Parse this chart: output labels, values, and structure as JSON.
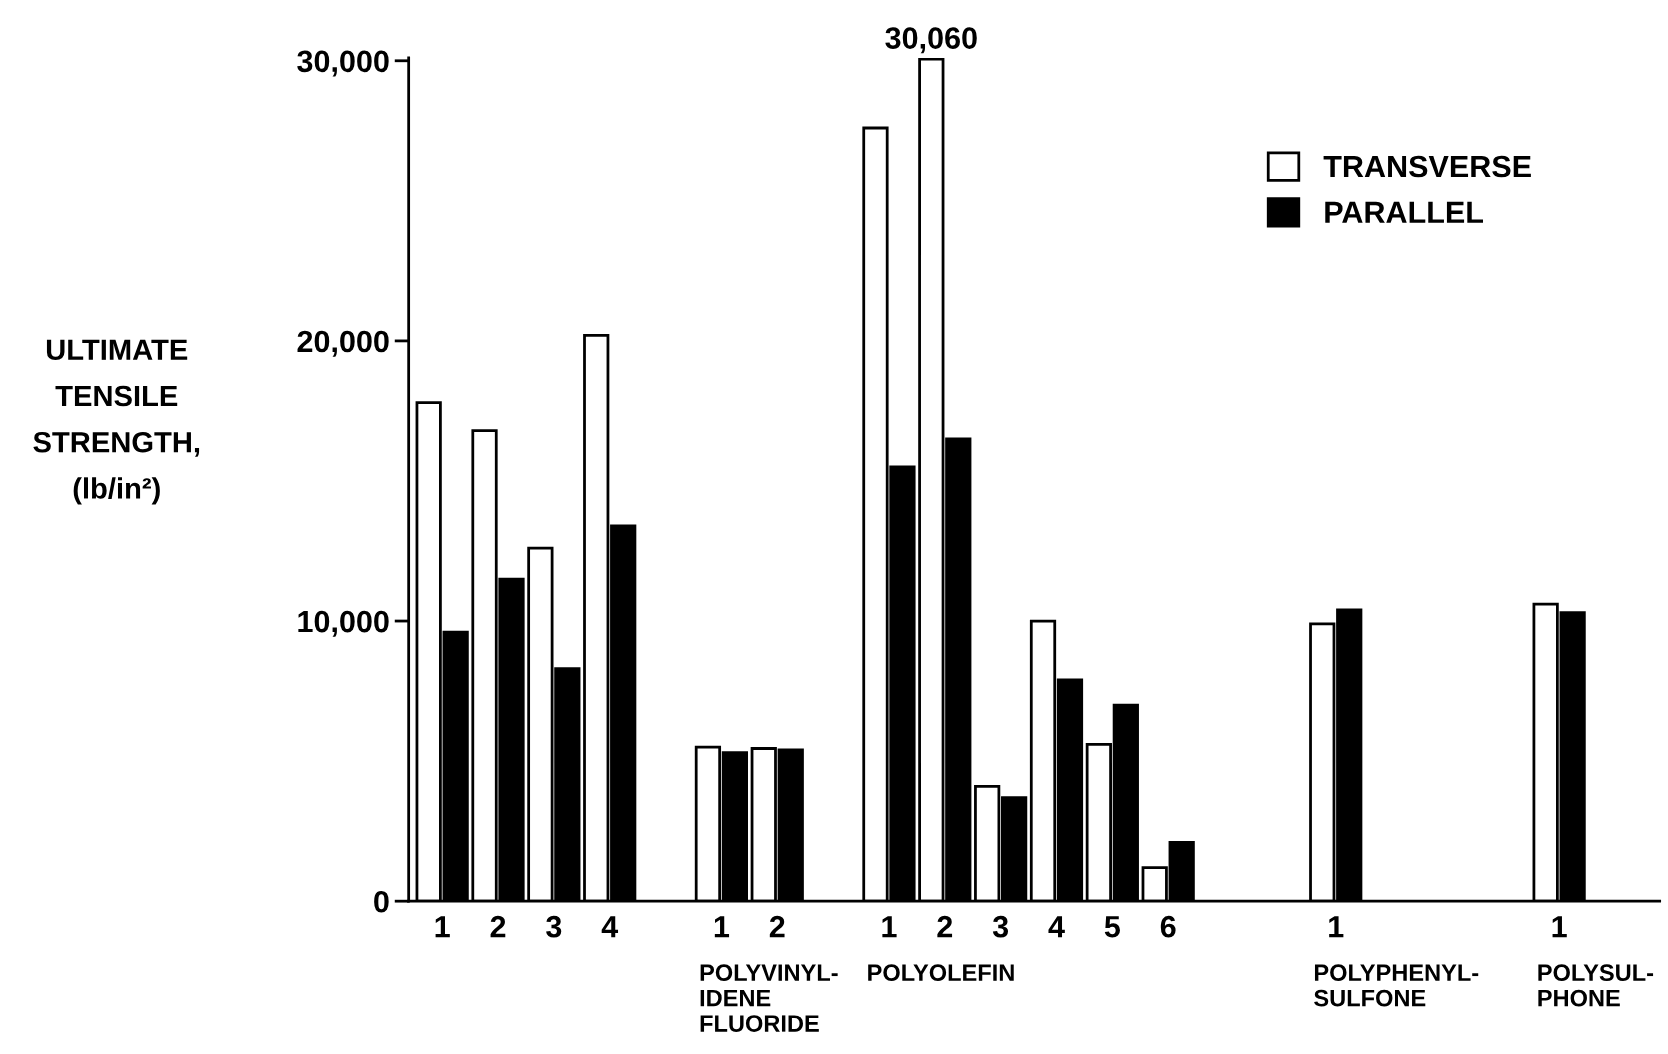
{
  "chart_data": {
    "type": "bar",
    "ylabel": "ULTIMATE\nTENSILE\nSTRENGTH,\n(lb/in²)",
    "categories": [
      "1",
      "2",
      "3",
      "4",
      null,
      "1",
      "2",
      null,
      "1",
      "2",
      "3",
      "4",
      "5",
      "6",
      null,
      null,
      "1",
      null,
      null,
      null,
      "1",
      null
    ],
    "series": [
      {
        "name": "TRANSVERSE",
        "color": "#ffffff",
        "values": [
          17800,
          16800,
          12600,
          20200,
          null,
          5500,
          5450,
          null,
          27600,
          30060,
          4100,
          10000,
          5600,
          1200,
          null,
          null,
          9900,
          null,
          null,
          null,
          10600,
          null
        ],
        "value_labels": [
          null,
          null,
          null,
          null,
          null,
          null,
          null,
          null,
          null,
          "30,060",
          null,
          null,
          null,
          null,
          null,
          null,
          null,
          null,
          null,
          null,
          null,
          null
        ]
      },
      {
        "name": "PARALLEL",
        "color": "#000000",
        "values": [
          9600,
          11500,
          8300,
          13400,
          null,
          5300,
          5400,
          null,
          15500,
          16500,
          3700,
          7900,
          7000,
          2100,
          null,
          null,
          10400,
          null,
          null,
          null,
          10300,
          null
        ]
      }
    ],
    "ylim": [
      0,
      30100
    ],
    "yticks": [
      {
        "value": 0,
        "label": "0"
      },
      {
        "value": 10000,
        "label": "10,000"
      },
      {
        "value": 20000,
        "label": "20,000"
      },
      {
        "value": 30000,
        "label": "30,000"
      }
    ],
    "legend": "top right",
    "grid": false,
    "annotations": [
      "POLYVINYL-\nIDENE\nFLUORIDE",
      "POLYOLEFIN",
      "POLYPHENYL-\nSULFONE",
      "POLYSUL-\nPHONE"
    ]
  }
}
